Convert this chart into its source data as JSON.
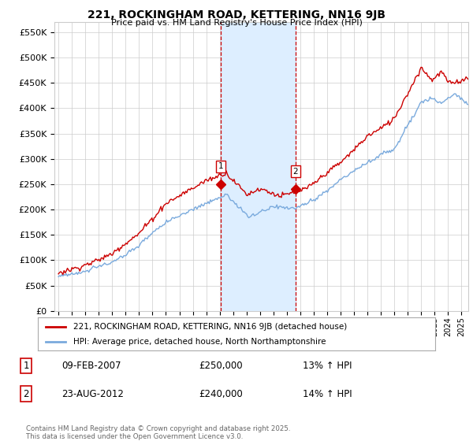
{
  "title": "221, ROCKINGHAM ROAD, KETTERING, NN16 9JB",
  "subtitle": "Price paid vs. HM Land Registry's House Price Index (HPI)",
  "yticks": [
    0,
    50000,
    100000,
    150000,
    200000,
    250000,
    300000,
    350000,
    400000,
    450000,
    500000,
    550000
  ],
  "ylim": [
    0,
    570000
  ],
  "xlim_start": 1994.7,
  "xlim_end": 2025.5,
  "line1_color": "#cc0000",
  "line2_color": "#7aaadd",
  "shaded_color": "#ddeeff",
  "vline1_x": 2007.08,
  "vline2_x": 2012.63,
  "vline_color": "#cc0000",
  "marker1_x": 2007.08,
  "marker1_y": 250000,
  "marker2_x": 2012.63,
  "marker2_y": 240000,
  "legend_line1": "221, ROCKINGHAM ROAD, KETTERING, NN16 9JB (detached house)",
  "legend_line2": "HPI: Average price, detached house, North Northamptonshire",
  "annotation1_label": "1",
  "annotation1_date": "09-FEB-2007",
  "annotation1_price": "£250,000",
  "annotation1_hpi": "13% ↑ HPI",
  "annotation2_label": "2",
  "annotation2_date": "23-AUG-2012",
  "annotation2_price": "£240,000",
  "annotation2_hpi": "14% ↑ HPI",
  "footer": "Contains HM Land Registry data © Crown copyright and database right 2025.\nThis data is licensed under the Open Government Licence v3.0.",
  "bg_color": "#ffffff",
  "grid_color": "#cccccc"
}
